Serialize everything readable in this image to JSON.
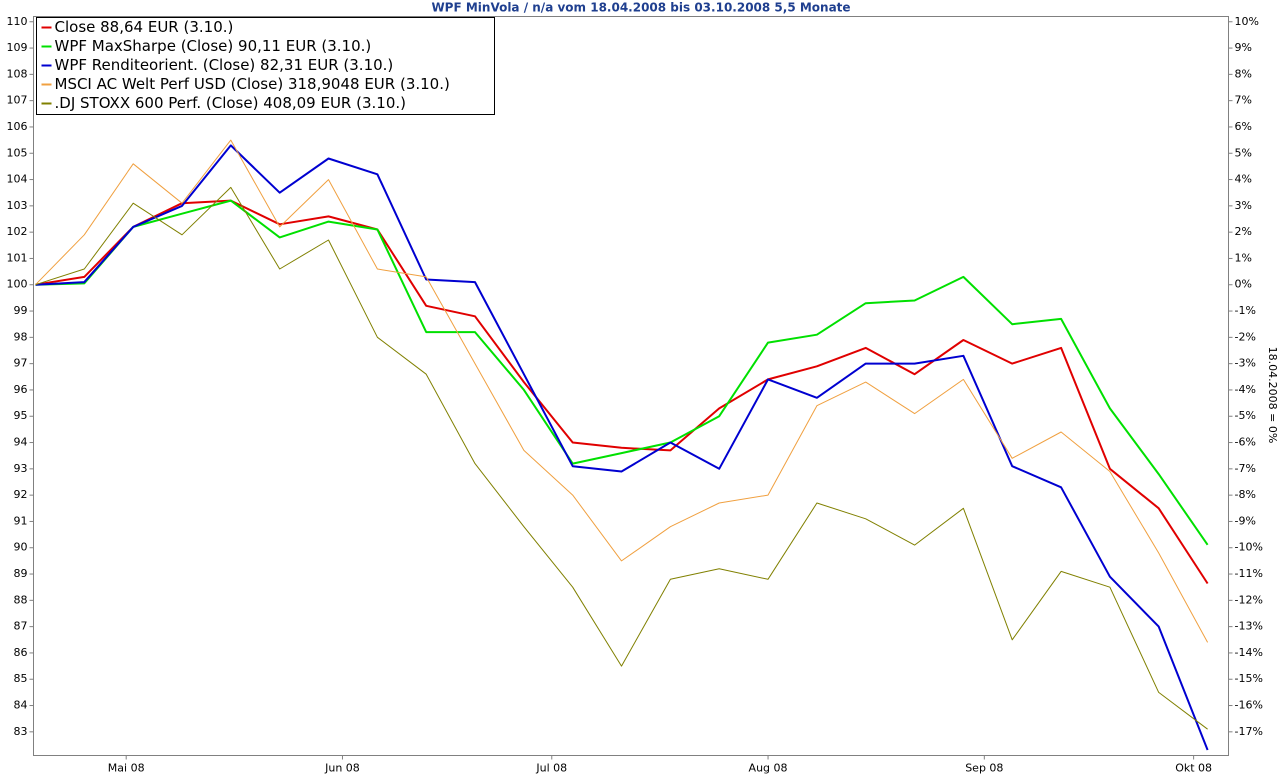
{
  "chart_data": {
    "type": "line",
    "title": "WPF MinVola / n/a vom 18.04.2008 bis 03.10.2008 5,5 Monate",
    "y2_label": "18.04.2008 = 0%",
    "x": [
      "2008-04-18",
      "2008-04-25",
      "2008-05-02",
      "2008-05-09",
      "2008-05-16",
      "2008-05-23",
      "2008-05-30",
      "2008-06-06",
      "2008-06-13",
      "2008-06-20",
      "2008-06-27",
      "2008-07-04",
      "2008-07-11",
      "2008-07-18",
      "2008-07-25",
      "2008-08-01",
      "2008-08-08",
      "2008-08-15",
      "2008-08-22",
      "2008-08-29",
      "2008-09-05",
      "2008-09-12",
      "2008-09-19",
      "2008-09-26",
      "2008-10-03"
    ],
    "xlim": [
      "2008-04-18",
      "2008-10-06"
    ],
    "xticks": [
      {
        "value": "2008-05-01",
        "label": "Mai 08"
      },
      {
        "value": "2008-06-01",
        "label": "Jun 08"
      },
      {
        "value": "2008-07-01",
        "label": "Jul 08"
      },
      {
        "value": "2008-08-01",
        "label": "Aug 08"
      },
      {
        "value": "2008-09-01",
        "label": "Sep 08"
      },
      {
        "value": "2008-10-01",
        "label": "Okt 08"
      }
    ],
    "ylim": [
      82.1,
      110.2
    ],
    "yticks": [
      83,
      84,
      85,
      86,
      87,
      88,
      89,
      90,
      91,
      92,
      93,
      94,
      95,
      96,
      97,
      98,
      99,
      100,
      101,
      102,
      103,
      104,
      105,
      106,
      107,
      108,
      109,
      110
    ],
    "y2lim": [
      -17.9,
      10.2
    ],
    "y2ticks": [
      {
        "value": -17,
        "label": "-17%"
      },
      {
        "value": -16,
        "label": "-16%"
      },
      {
        "value": -15,
        "label": "-15%"
      },
      {
        "value": -14,
        "label": "-14%"
      },
      {
        "value": -13,
        "label": "-13%"
      },
      {
        "value": -12,
        "label": "-12%"
      },
      {
        "value": -11,
        "label": "-11%"
      },
      {
        "value": -10,
        "label": "-10%"
      },
      {
        "value": -9,
        "label": "-9%"
      },
      {
        "value": -8,
        "label": "-8%"
      },
      {
        "value": -7,
        "label": "-7%"
      },
      {
        "value": -6,
        "label": "-6%"
      },
      {
        "value": -5,
        "label": "-5%"
      },
      {
        "value": -4,
        "label": "-4%"
      },
      {
        "value": -3,
        "label": "-3%"
      },
      {
        "value": -2,
        "label": "-2%"
      },
      {
        "value": -1,
        "label": "-1%"
      },
      {
        "value": 0,
        "label": "0%"
      },
      {
        "value": 1,
        "label": "1%"
      },
      {
        "value": 2,
        "label": "2%"
      },
      {
        "value": 3,
        "label": "3%"
      },
      {
        "value": 4,
        "label": "4%"
      },
      {
        "value": 5,
        "label": "5%"
      },
      {
        "value": 6,
        "label": "6%"
      },
      {
        "value": 7,
        "label": "7%"
      },
      {
        "value": 8,
        "label": "8%"
      },
      {
        "value": 9,
        "label": "9%"
      },
      {
        "value": 10,
        "label": "10%"
      }
    ],
    "legend": "upper left",
    "grid": false,
    "series": [
      {
        "name": "Close 88,64 EUR (3.10.)",
        "color": "#e00000",
        "width": 2,
        "values": [
          100,
          100.3,
          102.2,
          103.1,
          103.2,
          102.3,
          102.6,
          102.1,
          99.2,
          98.8,
          96.3,
          94.0,
          93.8,
          93.7,
          95.3,
          96.4,
          96.9,
          97.6,
          96.6,
          97.9,
          97.0,
          97.6,
          93.0,
          91.5,
          88.64
        ]
      },
      {
        "name": "WPF MaxSharpe (Close) 90,11 EUR (3.10.)",
        "color": "#00e000",
        "width": 2,
        "values": [
          100,
          100.05,
          102.2,
          102.7,
          103.2,
          101.8,
          102.4,
          102.1,
          98.2,
          98.2,
          96.0,
          93.2,
          93.6,
          94.0,
          95.0,
          97.8,
          98.1,
          99.3,
          99.4,
          100.3,
          98.5,
          98.7,
          95.3,
          92.8,
          90.11
        ]
      },
      {
        "name": "WPF Renditeorient. (Close) 82,31 EUR (3.10.)",
        "color": "#0000d0",
        "width": 2,
        "values": [
          100,
          100.1,
          102.2,
          103.0,
          105.3,
          103.5,
          104.8,
          104.2,
          100.2,
          100.1,
          96.6,
          93.1,
          92.9,
          94.0,
          93.0,
          96.4,
          95.7,
          97.0,
          97.0,
          97.3,
          93.1,
          92.3,
          88.9,
          87.0,
          82.31
        ]
      },
      {
        "name": "MSCI AC Welt Perf USD (Close) 318,9048 EUR (3.10.)",
        "color": "#f0a040",
        "width": 1,
        "values": [
          100,
          101.9,
          104.6,
          103.1,
          105.5,
          102.2,
          104.0,
          100.6,
          100.3,
          97.0,
          93.7,
          92.0,
          89.5,
          90.8,
          91.7,
          92.0,
          95.4,
          96.3,
          95.1,
          96.4,
          93.4,
          94.4,
          92.9,
          89.8,
          86.4
        ]
      },
      {
        "name": ".DJ STOXX 600 Perf. (Close) 408,09 EUR (3.10.)",
        "color": "#808000",
        "width": 1,
        "values": [
          100,
          100.6,
          103.1,
          101.9,
          103.7,
          100.6,
          101.7,
          98.0,
          96.6,
          93.2,
          90.8,
          88.5,
          85.5,
          88.8,
          89.2,
          88.8,
          91.7,
          91.1,
          90.1,
          91.5,
          86.5,
          89.1,
          88.5,
          84.5,
          83.1
        ]
      }
    ]
  }
}
